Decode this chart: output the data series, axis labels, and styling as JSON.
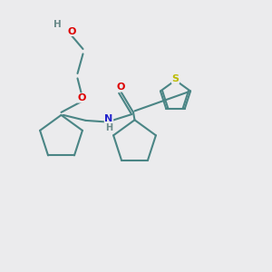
{
  "background_color": "#ebebed",
  "bond_color": "#4a8585",
  "bond_width": 1.5,
  "H_color": "#6a8a8a",
  "O_color": "#dd0000",
  "N_color": "#2222cc",
  "S_color": "#bbbb00",
  "font_size": 8,
  "fig_size": [
    3.0,
    3.0
  ],
  "dpi": 100,
  "xlim": [
    0,
    10
  ],
  "ylim": [
    0,
    10
  ]
}
